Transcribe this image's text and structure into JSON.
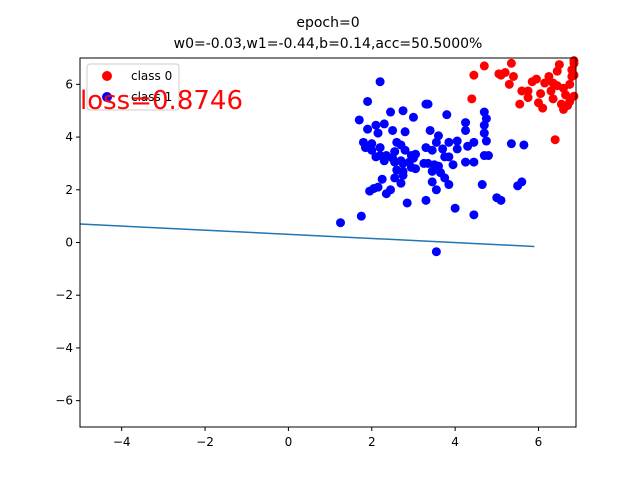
{
  "chart_data": {
    "type": "scatter",
    "title": "epoch=0",
    "subtitle": "w0=-0.03,w1=-0.44,b=0.14,acc=50.5000%",
    "annotation": "loss=0.8746",
    "annotation_color": "#ff0000",
    "xlim": [
      -5,
      6.9
    ],
    "ylim": [
      -7,
      7
    ],
    "x_ticks": [
      -4,
      -2,
      0,
      2,
      4,
      6
    ],
    "y_ticks": [
      -6,
      -4,
      -2,
      0,
      2,
      4,
      6
    ],
    "x_tick_labels": [
      "−4",
      "−2",
      "0",
      "2",
      "4",
      "6"
    ],
    "y_tick_labels": [
      "−6",
      "−4",
      "−2",
      "0",
      "2",
      "4",
      "6"
    ],
    "grid": false,
    "legend_position": "top-left",
    "series": [
      {
        "name": "class 0",
        "color": "#ff0000",
        "points": [
          [
            4.45,
            6.35
          ],
          [
            4.7,
            6.7
          ],
          [
            5.05,
            6.4
          ],
          [
            5.1,
            6.35
          ],
          [
            5.2,
            6.45
          ],
          [
            5.3,
            6.0
          ],
          [
            5.4,
            6.3
          ],
          [
            5.35,
            6.8
          ],
          [
            5.55,
            5.25
          ],
          [
            5.6,
            5.75
          ],
          [
            5.75,
            5.75
          ],
          [
            5.75,
            5.5
          ],
          [
            5.85,
            6.1
          ],
          [
            5.95,
            6.2
          ],
          [
            6.0,
            5.3
          ],
          [
            6.05,
            5.65
          ],
          [
            6.1,
            5.1
          ],
          [
            6.15,
            6.05
          ],
          [
            6.25,
            6.3
          ],
          [
            6.3,
            5.75
          ],
          [
            6.35,
            5.45
          ],
          [
            6.35,
            6.05
          ],
          [
            6.45,
            5.95
          ],
          [
            6.45,
            6.5
          ],
          [
            6.5,
            6.75
          ],
          [
            6.55,
            5.25
          ],
          [
            6.6,
            5.05
          ],
          [
            6.65,
            5.6
          ],
          [
            6.7,
            5.2
          ],
          [
            6.75,
            6.0
          ],
          [
            6.75,
            5.35
          ],
          [
            6.8,
            6.55
          ],
          [
            6.8,
            6.3
          ],
          [
            6.85,
            5.55
          ],
          [
            6.85,
            6.9
          ],
          [
            6.9,
            6.35
          ],
          [
            6.4,
            3.9
          ],
          [
            4.4,
            5.45
          ],
          [
            6.6,
            5.85
          ],
          [
            6.9,
            6.8
          ]
        ]
      },
      {
        "name": "class 1",
        "color": "#0000ff",
        "points": [
          [
            2.2,
            6.1
          ],
          [
            1.9,
            5.35
          ],
          [
            2.45,
            4.95
          ],
          [
            2.75,
            5.0
          ],
          [
            3.3,
            5.25
          ],
          [
            3.35,
            5.25
          ],
          [
            1.7,
            4.65
          ],
          [
            2.1,
            4.45
          ],
          [
            2.5,
            4.25
          ],
          [
            2.8,
            4.2
          ],
          [
            1.9,
            4.3
          ],
          [
            2.15,
            4.15
          ],
          [
            2.3,
            4.5
          ],
          [
            3.0,
            4.75
          ],
          [
            3.8,
            4.85
          ],
          [
            4.25,
            4.55
          ],
          [
            4.7,
            4.95
          ],
          [
            4.75,
            4.7
          ],
          [
            4.7,
            4.45
          ],
          [
            4.7,
            4.15
          ],
          [
            4.75,
            3.85
          ],
          [
            4.25,
            4.25
          ],
          [
            3.4,
            4.25
          ],
          [
            3.6,
            4.05
          ],
          [
            3.55,
            3.8
          ],
          [
            3.85,
            3.8
          ],
          [
            4.05,
            3.85
          ],
          [
            4.3,
            3.65
          ],
          [
            4.05,
            3.55
          ],
          [
            5.35,
            3.75
          ],
          [
            5.65,
            3.7
          ],
          [
            4.7,
            3.3
          ],
          [
            4.8,
            3.3
          ],
          [
            4.25,
            3.05
          ],
          [
            4.45,
            3.05
          ],
          [
            3.85,
            3.25
          ],
          [
            3.75,
            3.25
          ],
          [
            3.7,
            3.55
          ],
          [
            3.45,
            3.5
          ],
          [
            3.3,
            3.6
          ],
          [
            3.05,
            3.35
          ],
          [
            2.95,
            3.3
          ],
          [
            2.9,
            3.05
          ],
          [
            2.95,
            2.85
          ],
          [
            3.05,
            2.8
          ],
          [
            2.75,
            3.0
          ],
          [
            2.7,
            3.1
          ],
          [
            2.55,
            3.05
          ],
          [
            2.5,
            3.2
          ],
          [
            2.35,
            3.3
          ],
          [
            2.3,
            3.1
          ],
          [
            2.2,
            3.3
          ],
          [
            2.1,
            3.25
          ],
          [
            2.0,
            3.5
          ],
          [
            1.85,
            3.6
          ],
          [
            1.8,
            3.8
          ],
          [
            2.0,
            3.75
          ],
          [
            2.2,
            3.6
          ],
          [
            2.6,
            3.8
          ],
          [
            2.7,
            3.7
          ],
          [
            2.8,
            3.5
          ],
          [
            3.35,
            3.0
          ],
          [
            3.5,
            2.95
          ],
          [
            3.6,
            2.9
          ],
          [
            3.65,
            2.65
          ],
          [
            3.45,
            2.7
          ],
          [
            3.25,
            3.0
          ],
          [
            2.75,
            2.7
          ],
          [
            2.6,
            2.75
          ],
          [
            2.75,
            2.55
          ],
          [
            2.55,
            2.45
          ],
          [
            2.7,
            2.25
          ],
          [
            2.45,
            2.0
          ],
          [
            2.35,
            1.85
          ],
          [
            2.25,
            2.4
          ],
          [
            2.15,
            2.1
          ],
          [
            2.05,
            2.05
          ],
          [
            1.95,
            1.95
          ],
          [
            2.85,
            1.5
          ],
          [
            3.3,
            1.6
          ],
          [
            3.55,
            2.0
          ],
          [
            3.85,
            2.2
          ],
          [
            3.75,
            2.45
          ],
          [
            3.45,
            2.3
          ],
          [
            4.0,
            1.3
          ],
          [
            4.45,
            1.05
          ],
          [
            4.65,
            2.2
          ],
          [
            5.0,
            1.7
          ],
          [
            5.1,
            1.6
          ],
          [
            5.5,
            2.15
          ],
          [
            5.6,
            2.3
          ],
          [
            1.75,
            1.0
          ],
          [
            1.25,
            0.75
          ],
          [
            3.55,
            -0.35
          ],
          [
            2.55,
            3.45
          ],
          [
            3.0,
            3.2
          ],
          [
            3.95,
            2.95
          ],
          [
            4.45,
            3.8
          ]
        ]
      }
    ],
    "decision_line": {
      "color": "#1f77b4",
      "points": [
        [
          -5,
          0.7
        ],
        [
          5.9,
          -0.15
        ]
      ]
    }
  }
}
